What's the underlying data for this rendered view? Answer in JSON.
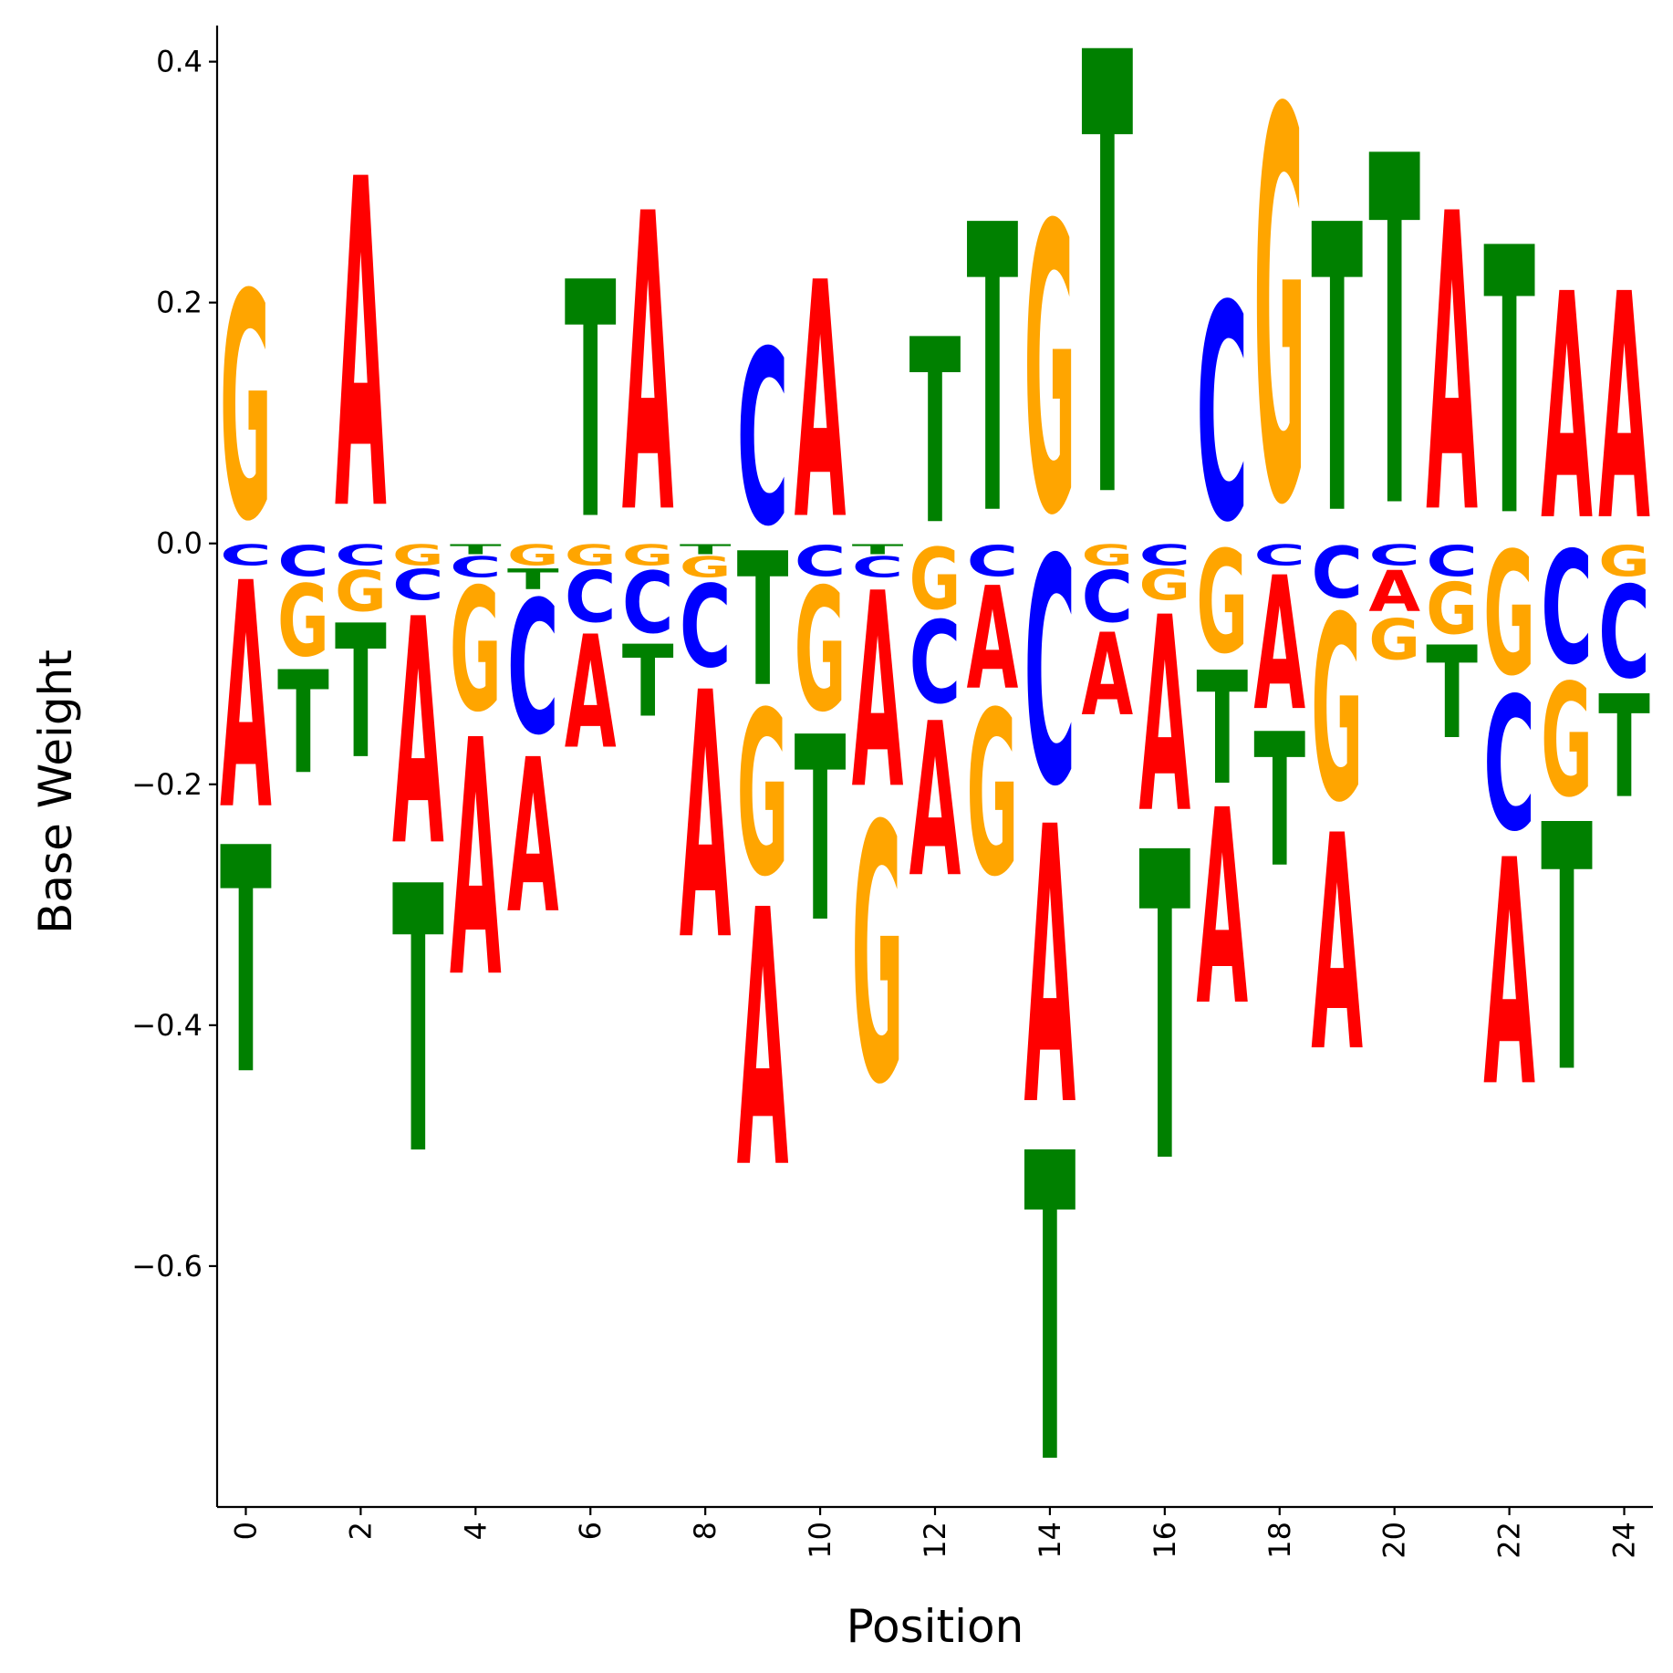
{
  "chart_data": {
    "type": "logo",
    "title": "",
    "xlabel": "Position",
    "ylabel": "Base Weight",
    "xlim": [
      -0.5,
      24.5
    ],
    "ylim": [
      -0.8,
      0.43
    ],
    "x_ticks": [
      0,
      2,
      4,
      6,
      8,
      10,
      12,
      14,
      16,
      18,
      20,
      22,
      24
    ],
    "y_ticks": [
      -0.6,
      -0.4,
      -0.2,
      0.0,
      0.2,
      0.4
    ],
    "y_tick_labels": [
      "−0.6",
      "−0.4",
      "−0.2",
      "0.0",
      "0.2",
      "0.4"
    ],
    "grid": false,
    "colors": {
      "A": "#ff0000",
      "C": "#0000ff",
      "G": "#ffa500",
      "T": "#008000"
    },
    "positions": [
      {
        "pos": 0,
        "A": -0.22,
        "C": -0.02,
        "G": 0.22,
        "T": -0.22
      },
      {
        "pos": 1,
        "A": 0.0,
        "C": -0.03,
        "G": -0.07,
        "T": -0.1
      },
      {
        "pos": 2,
        "A": 0.32,
        "C": -0.02,
        "G": -0.04,
        "T": -0.13
      },
      {
        "pos": 3,
        "A": -0.22,
        "C": -0.03,
        "G": -0.02,
        "T": -0.26
      },
      {
        "pos": 4,
        "A": -0.23,
        "C": -0.02,
        "G": -0.12,
        "T": -0.01
      },
      {
        "pos": 5,
        "A": -0.15,
        "C": -0.13,
        "G": -0.02,
        "T": -0.02
      },
      {
        "pos": 6,
        "A": -0.11,
        "C": -0.05,
        "G": -0.02,
        "T": 0.23
      },
      {
        "pos": 7,
        "A": 0.29,
        "C": -0.06,
        "G": -0.02,
        "T": -0.07
      },
      {
        "pos": 8,
        "A": -0.24,
        "C": -0.08,
        "G": -0.02,
        "T": -0.01
      },
      {
        "pos": 9,
        "A": -0.25,
        "C": 0.17,
        "G": -0.16,
        "T": -0.13
      },
      {
        "pos": 10,
        "A": 0.23,
        "C": -0.03,
        "G": -0.12,
        "T": -0.18
      },
      {
        "pos": 11,
        "A": -0.19,
        "C": -0.02,
        "G": -0.25,
        "T": -0.01
      },
      {
        "pos": 12,
        "A": -0.15,
        "C": -0.08,
        "G": -0.06,
        "T": 0.18
      },
      {
        "pos": 13,
        "A": -0.1,
        "C": -0.03,
        "G": -0.16,
        "T": 0.28
      },
      {
        "pos": 14,
        "A": -0.27,
        "C": -0.22,
        "G": 0.28,
        "T": -0.3
      },
      {
        "pos": 15,
        "A": -0.08,
        "C": -0.05,
        "G": -0.02,
        "T": 0.43
      },
      {
        "pos": 16,
        "A": -0.19,
        "C": -0.02,
        "G": -0.03,
        "T": -0.3
      },
      {
        "pos": 17,
        "A": -0.19,
        "C": 0.21,
        "G": -0.1,
        "T": -0.11
      },
      {
        "pos": 18,
        "A": -0.13,
        "C": -0.02,
        "G": 0.38,
        "T": -0.13
      },
      {
        "pos": 19,
        "A": -0.21,
        "C": -0.05,
        "G": -0.18,
        "T": 0.28
      },
      {
        "pos": 20,
        "A": -0.04,
        "C": -0.02,
        "G": -0.04,
        "T": 0.34
      },
      {
        "pos": 21,
        "A": 0.29,
        "C": -0.03,
        "G": -0.05,
        "T": -0.09
      },
      {
        "pos": 22,
        "A": -0.22,
        "C": -0.13,
        "G": -0.12,
        "T": 0.26
      },
      {
        "pos": 23,
        "A": 0.22,
        "C": -0.11,
        "G": -0.11,
        "T": -0.24
      },
      {
        "pos": 24,
        "A": 0.22,
        "C": -0.09,
        "G": -0.03,
        "T": -0.1
      }
    ]
  }
}
